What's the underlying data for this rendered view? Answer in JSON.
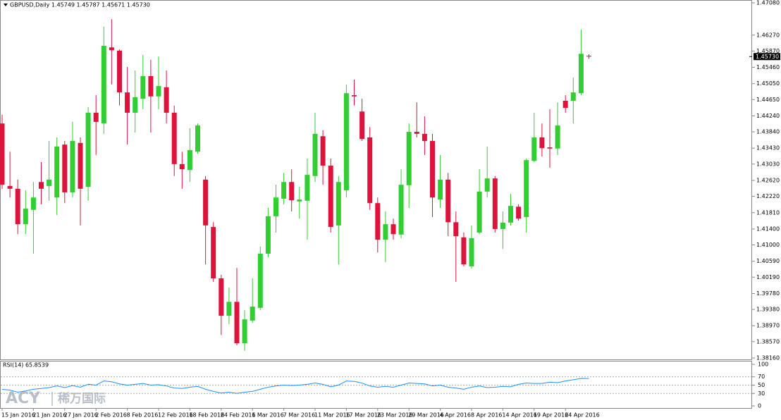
{
  "chart_data": [
    {
      "type": "candlestick",
      "title": "GBPUSD,Daily 1.45749 1.45787 1.45671 1.45730",
      "categories": [
        "15 Jan 2016",
        null,
        null,
        null,
        "21 Jan 2016",
        null,
        null,
        null,
        "27 Jan 2016",
        null,
        null,
        null,
        "2 Feb 2016",
        null,
        null,
        null,
        "8 Feb 2016",
        null,
        null,
        null,
        "12 Feb 2016",
        null,
        null,
        null,
        "18 Feb 2016",
        null,
        null,
        null,
        "24 Feb 2016",
        null,
        null,
        null,
        "1 Mar 2016",
        null,
        null,
        null,
        "7 Mar 2016",
        null,
        null,
        null,
        "11 Mar 2016",
        null,
        null,
        null,
        "17 Mar 2016",
        null,
        null,
        null,
        "23 Mar 2016",
        null,
        null,
        null,
        "29 Mar 2016",
        null,
        null,
        null,
        "4 Apr 2016",
        null,
        null,
        null,
        "8 Apr 2016",
        null,
        null,
        null,
        "14 Apr 2016",
        null,
        null,
        null,
        "19 Apr 2016",
        null,
        null,
        null,
        "24 Apr 2016",
        null,
        null,
        null
      ],
      "open": [
        1.4405,
        1.4248,
        1.4241,
        1.4152,
        1.4188,
        1.4258,
        1.4248,
        1.4219,
        1.4352,
        1.4232,
        1.4356,
        1.4246,
        1.4432,
        1.4405,
        1.4596,
        1.4588,
        1.4483,
        1.4432,
        1.4467,
        1.4524,
        1.4473,
        1.4496,
        1.4432,
        1.4303,
        1.4288,
        1.4334,
        1.4264,
        1.4145,
        1.4016,
        1.3922,
        1.3957,
        1.3853,
        1.391,
        1.3942,
        1.4078,
        1.4172,
        1.4216,
        1.4258,
        1.4209,
        1.4211,
        1.4273,
        1.4373,
        1.4299,
        1.4149,
        1.4237,
        1.4476,
        1.4435,
        1.437,
        1.4205,
        1.4113,
        1.4152,
        1.4126,
        1.425,
        1.4384,
        1.4379,
        1.4361,
        1.4214,
        1.4264,
        1.4157,
        1.4119,
        1.4046,
        1.4131,
        1.4234,
        1.4267,
        1.414,
        1.4156,
        1.4196,
        1.417,
        1.4311,
        1.437,
        1.4345,
        1.4342,
        1.4462,
        1.4462,
        1.4481,
        1.45749
      ],
      "high": [
        1.4427,
        1.4334,
        1.4264,
        1.4237,
        1.4258,
        1.4308,
        1.4361,
        1.437,
        1.4361,
        1.4409,
        1.437,
        1.4446,
        1.4476,
        1.4648,
        1.4667,
        1.4591,
        1.4547,
        1.4538,
        1.4577,
        1.4565,
        1.4573,
        1.4538,
        1.445,
        1.4334,
        1.4393,
        1.4405,
        1.4273,
        1.4157,
        1.4025,
        1.3993,
        1.4042,
        1.3936,
        1.4016,
        1.4096,
        1.4193,
        1.4251,
        1.4281,
        1.429,
        1.4246,
        1.4317,
        1.4432,
        1.4388,
        1.4317,
        1.4273,
        1.4503,
        1.4515,
        1.4467,
        1.4396,
        1.4219,
        1.4184,
        1.4166,
        1.429,
        1.4405,
        1.4458,
        1.4423,
        1.4379,
        1.4326,
        1.4281,
        1.4184,
        1.4131,
        1.4149,
        1.429,
        1.4347,
        1.4273,
        1.4184,
        1.4228,
        1.4202,
        1.4317,
        1.4432,
        1.4405,
        1.4441,
        1.4458,
        1.4476,
        1.452,
        1.4641,
        1.45787
      ],
      "low": [
        1.4241,
        1.4219,
        1.4127,
        1.4127,
        1.4078,
        1.4202,
        1.4211,
        1.4175,
        1.4205,
        1.4219,
        1.4149,
        1.4211,
        1.4326,
        1.4379,
        1.4503,
        1.445,
        1.4352,
        1.4382,
        1.4441,
        1.4382,
        1.4441,
        1.4405,
        1.4273,
        1.4241,
        1.4258,
        1.4329,
        1.4051,
        1.4007,
        1.3874,
        1.3901,
        1.3848,
        1.3834,
        1.3904,
        1.3936,
        1.4069,
        1.4131,
        1.4202,
        1.4184,
        1.4166,
        1.4113,
        1.4258,
        1.4251,
        1.4131,
        1.4051,
        1.4219,
        1.445,
        1.4361,
        1.4188,
        1.4081,
        1.4057,
        1.4113,
        1.4117,
        1.4193,
        1.437,
        1.4326,
        1.417,
        1.4193,
        1.4122,
        1.4007,
        1.4046,
        1.4041,
        1.4127,
        1.4219,
        1.4131,
        1.409,
        1.4149,
        1.4161,
        1.4131,
        1.4308,
        1.4322,
        1.4294,
        1.4326,
        1.4432,
        1.4405,
        1.4476,
        1.45671
      ],
      "close": [
        1.4251,
        1.4241,
        1.4152,
        1.4191,
        1.4219,
        1.4241,
        1.4264,
        1.4347,
        1.4232,
        1.4361,
        1.4241,
        1.4432,
        1.4409,
        1.46,
        1.4589,
        1.4483,
        1.4432,
        1.4471,
        1.4524,
        1.4473,
        1.4499,
        1.4432,
        1.4303,
        1.429,
        1.4338,
        1.44,
        1.4149,
        1.4016,
        1.3922,
        1.3957,
        1.3853,
        1.3913,
        1.3945,
        1.4078,
        1.4172,
        1.4219,
        1.4258,
        1.4212,
        1.4214,
        1.4276,
        1.4379,
        1.4299,
        1.4145,
        1.4258,
        1.4481,
        1.4473,
        1.4366,
        1.4205,
        1.4113,
        1.4152,
        1.4127,
        1.4251,
        1.4384,
        1.4379,
        1.4361,
        1.4219,
        1.4264,
        1.4157,
        1.4122,
        1.4051,
        1.4117,
        1.4234,
        1.4267,
        1.414,
        1.4156,
        1.4198,
        1.4166,
        1.4313,
        1.437,
        1.4343,
        1.4342,
        1.44,
        1.4444,
        1.4483,
        1.458,
        1.4573
      ],
      "up_color": "#32cd32",
      "down_color": "#dc143c",
      "ylim": [
        1.3816,
        1.4708
      ],
      "yticks": [
        {
          "value": 1.4708,
          "label": "1.47080"
        },
        {
          "value": 1.4627,
          "label": "1.46270"
        },
        {
          "value": 1.4587,
          "label": "1.45870"
        },
        {
          "value": 1.4546,
          "label": "1.45460"
        },
        {
          "value": 1.4505,
          "label": "1.45050"
        },
        {
          "value": 1.4465,
          "label": "1.44650"
        },
        {
          "value": 1.4424,
          "label": "1.44240"
        },
        {
          "value": 1.4384,
          "label": "1.43840"
        },
        {
          "value": 1.4343,
          "label": "1.43430"
        },
        {
          "value": 1.4303,
          "label": "1.43030"
        },
        {
          "value": 1.4262,
          "label": "1.42620"
        },
        {
          "value": 1.4222,
          "label": "1.42220"
        },
        {
          "value": 1.4181,
          "label": "1.41810"
        },
        {
          "value": 1.414,
          "label": "1.41400"
        },
        {
          "value": 1.41,
          "label": "1.41000"
        },
        {
          "value": 1.4059,
          "label": "1.40590"
        },
        {
          "value": 1.4019,
          "label": "1.40190"
        },
        {
          "value": 1.3978,
          "label": "1.39780"
        },
        {
          "value": 1.3938,
          "label": "1.39380"
        },
        {
          "value": 1.3897,
          "label": "1.38970"
        },
        {
          "value": 1.3857,
          "label": "1.38570"
        },
        {
          "value": 1.3816,
          "label": "1.38160"
        }
      ],
      "current_price": {
        "value": 1.4573,
        "label": "1.45730"
      }
    },
    {
      "type": "line",
      "title": "RSI(14) 65.8539",
      "color": "#1e90ff",
      "values": [
        40,
        38,
        33,
        36,
        40,
        42,
        44,
        48,
        44,
        49,
        45,
        52,
        50,
        60,
        58,
        53,
        50,
        52,
        54,
        50,
        51,
        48,
        43,
        42,
        45,
        47,
        40,
        35,
        31,
        33,
        30,
        33,
        35,
        40,
        45,
        48,
        50,
        49,
        50,
        52,
        55,
        52,
        46,
        50,
        60,
        59,
        55,
        48,
        45,
        47,
        45,
        50,
        55,
        54,
        53,
        48,
        50,
        45,
        43,
        40,
        45,
        48,
        44,
        45,
        47,
        46,
        52,
        55,
        54,
        54,
        57,
        56,
        60,
        63,
        66,
        65.8539
      ],
      "ylim": [
        0,
        100
      ],
      "yticks": [
        0,
        30,
        50,
        70,
        100
      ]
    }
  ],
  "watermark": {
    "brand": "ACY",
    "text": "稀万国际"
  }
}
